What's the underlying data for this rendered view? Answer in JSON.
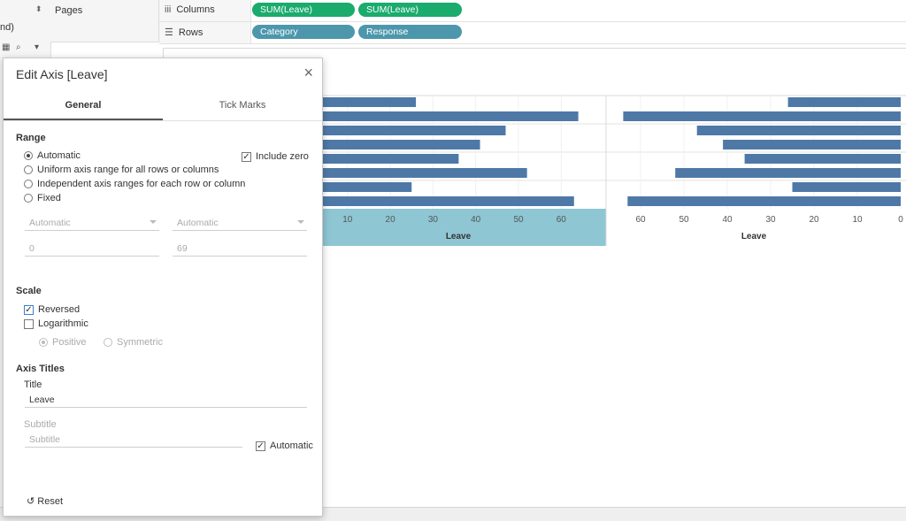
{
  "left_panel": {
    "fragment": "nd)"
  },
  "pages": {
    "label": "Pages"
  },
  "shelves": {
    "columns": {
      "label": "Columns",
      "pills": [
        "SUM(Leave)",
        "SUM(Leave)"
      ]
    },
    "rows": {
      "label": "Rows",
      "pills": [
        "Category",
        "Response"
      ]
    }
  },
  "colors": {
    "bar": "#4e79a7",
    "pill_green": "#1aab6d",
    "pill_blue": "#4d97ad",
    "highlight": "#8ec6d3"
  },
  "chart_data": {
    "type": "bar",
    "orientation": "horizontal",
    "left_axis": {
      "title": "Leave",
      "ticks": [
        10,
        20,
        30,
        40,
        50,
        60
      ],
      "reversed": false
    },
    "right_axis": {
      "title": "Leave",
      "ticks": [
        60,
        50,
        40,
        30,
        20,
        10,
        0
      ],
      "reversed": true
    },
    "values": [
      26,
      64,
      47,
      41,
      36,
      52,
      25,
      63
    ]
  },
  "dialog": {
    "title": "Edit Axis [Leave]",
    "tabs": [
      "General",
      "Tick Marks"
    ],
    "range": {
      "header": "Range",
      "options": [
        "Automatic",
        "Uniform axis range for all rows or columns",
        "Independent axis ranges for each row or column",
        "Fixed"
      ],
      "include_zero": "Include zero",
      "start_select": "Automatic",
      "end_select": "Automatic",
      "start_value": "0",
      "end_value": "69"
    },
    "scale": {
      "header": "Scale",
      "reversed": "Reversed",
      "logarithmic": "Logarithmic",
      "positive": "Positive",
      "symmetric": "Symmetric"
    },
    "axis_titles": {
      "header": "Axis Titles",
      "title_label": "Title",
      "title_value": "Leave",
      "subtitle_label": "Subtitle",
      "subtitle_placeholder": "Subtitle",
      "automatic": "Automatic"
    },
    "reset": "Reset"
  }
}
